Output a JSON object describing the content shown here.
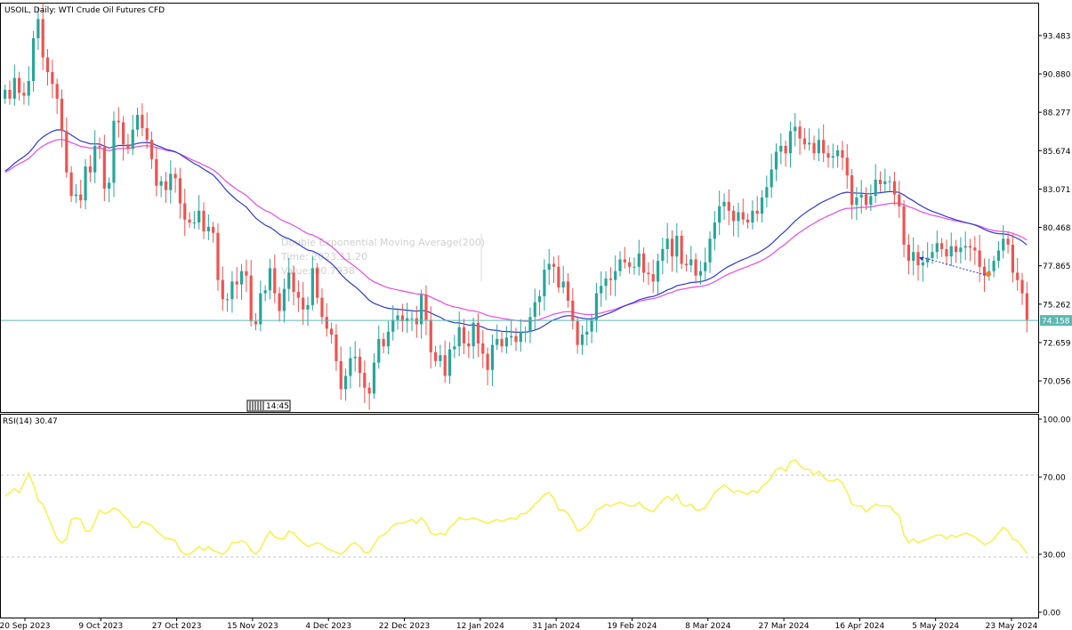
{
  "header": {
    "symbol_title": "USOIL, Daily:  WTI Crude Oil Futures CFD"
  },
  "tooltip": {
    "line1": "Double Exponential Moving Average(200)",
    "line2": "Time: 2023.11.20",
    "line3": "Value: 80.7938"
  },
  "time_marker": "14:45",
  "colors": {
    "bull": "#26a69a",
    "bear": "#ef5350",
    "ma_blue": "#2b3bd4",
    "ma_magenta": "#e64ce0",
    "rsi": "#f7f13a",
    "price_line": "#5bb8b0",
    "frame": "#000000"
  },
  "chart_data": [
    {
      "type": "candlestick",
      "title": "USOIL, Daily:  WTI Crude Oil Futures CFD",
      "y_ticks": [
        93.483,
        90.88,
        88.277,
        85.674,
        83.071,
        80.468,
        77.865,
        75.262,
        72.659,
        70.056
      ],
      "ylim": [
        67.95,
        95.65
      ],
      "current_price": "74.158",
      "x_ticks": [
        "20 Sep 2023",
        "9 Oct 2023",
        "27 Oct 2023",
        "15 Nov 2023",
        "4 Dec 2023",
        "22 Dec 2023",
        "12 Jan 2024",
        "31 Jan 2024",
        "19 Feb 2024",
        "8 Mar 2024",
        "27 Mar 2024",
        "16 Apr 2024",
        "5 May 2024",
        "23 May 2024"
      ],
      "close": [
        89.8,
        89.2,
        90.6,
        89.6,
        89.4,
        90.4,
        93.3,
        94.6,
        92.0,
        91.0,
        90.2,
        89.2,
        87.0,
        84.2,
        82.6,
        82.7,
        82.3,
        84.6,
        84.2,
        86.0,
        85.9,
        83.1,
        83.5,
        87.7,
        87.6,
        86.1,
        85.8,
        87.1,
        88.1,
        87.2,
        86.4,
        85.1,
        83.3,
        83.6,
        83.0,
        84.1,
        83.8,
        82.1,
        81.0,
        80.8,
        80.8,
        81.6,
        80.2,
        80.5,
        80.1,
        76.9,
        75.6,
        75.6,
        76.8,
        76.6,
        77.5,
        77.2,
        74.1,
        73.9,
        76.0,
        76.2,
        77.7,
        76.0,
        74.8,
        76.3,
        77.4,
        76.1,
        75.7,
        74.9,
        75.2,
        77.7,
        75.7,
        74.4,
        73.6,
        73.2,
        71.4,
        69.5,
        70.4,
        71.6,
        71.7,
        70.6,
        69.6,
        69.2,
        71.3,
        72.9,
        72.4,
        73.4,
        74.2,
        74.5,
        74.1,
        74.3,
        74.3,
        73.9,
        75.9,
        74.2,
        72.0,
        71.4,
        71.8,
        70.4,
        72.2,
        72.4,
        73.7,
        72.6,
        72.4,
        74.0,
        72.6,
        71.9,
        70.8,
        72.5,
        72.9,
        72.4,
        73.0,
        73.1,
        72.7,
        73.4,
        73.4,
        74.4,
        75.4,
        75.8,
        77.6,
        78.0,
        77.8,
        76.4,
        76.8,
        75.5,
        74.1,
        72.5,
        73.2,
        73.4,
        74.2,
        76.0,
        76.5,
        77.0,
        76.9,
        77.5,
        78.3,
        78.1,
        77.8,
        77.8,
        78.7,
        77.4,
        77.3,
        76.8,
        78.2,
        79.0,
        79.7,
        78.5,
        79.9,
        78.0,
        77.9,
        78.3,
        77.2,
        77.5,
        78.1,
        79.7,
        80.8,
        81.9,
        82.2,
        81.6,
        80.9,
        81.5,
        81.0,
        80.8,
        81.6,
        81.4,
        82.5,
        83.2,
        84.4,
        85.6,
        86.0,
        85.5,
        87.0,
        87.3,
        86.5,
        86.1,
        86.2,
        85.5,
        86.4,
        85.5,
        85.2,
        85.3,
        85.7,
        85.2,
        84.0,
        82.0,
        82.5,
        82.7,
        82.0,
        82.6,
        83.7,
        83.4,
        83.6,
        83.6,
        82.7,
        81.9,
        79.3,
        78.2,
        78.8,
        77.9,
        78.1,
        78.4,
        78.8,
        79.4,
        79.0,
        78.5,
        79.2,
        78.8,
        79.1,
        79.2,
        79.1,
        78.9,
        77.8,
        77.2,
        77.5,
        78.2,
        78.9,
        79.7,
        79.3,
        77.4,
        76.9,
        76.0,
        74.2
      ],
      "rsi_ticks": [
        100.0,
        70.0,
        30.0,
        0.0
      ],
      "rsi_title": "RSI(14) 30.47",
      "rsi_ylim": [
        0,
        100
      ],
      "rsi": [
        60,
        62,
        64,
        62,
        67,
        72,
        66,
        58,
        56,
        50,
        44,
        38,
        36,
        38,
        48,
        49,
        48,
        42,
        42,
        47,
        53,
        51,
        52,
        54,
        53,
        50,
        48,
        44,
        44,
        47,
        46,
        45,
        42,
        40,
        38,
        38,
        37,
        32,
        30,
        30,
        32,
        34,
        32,
        34,
        32,
        31,
        30,
        32,
        36,
        36,
        37,
        36,
        32,
        30,
        33,
        38,
        42,
        39,
        38,
        38,
        42,
        41,
        38,
        36,
        34,
        35,
        36,
        35,
        33,
        32,
        31,
        30,
        32,
        35,
        36,
        34,
        31,
        31,
        35,
        39,
        40,
        42,
        45,
        46,
        46,
        47,
        48,
        46,
        49,
        46,
        41,
        40,
        41,
        40,
        44,
        46,
        49,
        48,
        48,
        49,
        48,
        47,
        46,
        47,
        48,
        47,
        48,
        49,
        48,
        51,
        51,
        53,
        56,
        58,
        61,
        62,
        59,
        53,
        53,
        51,
        47,
        42,
        43,
        45,
        48,
        53,
        54,
        56,
        55,
        56,
        57,
        56,
        55,
        55,
        57,
        54,
        53,
        52,
        55,
        58,
        60,
        58,
        61,
        56,
        55,
        56,
        53,
        53,
        54,
        58,
        62,
        64,
        66,
        64,
        62,
        63,
        62,
        61,
        63,
        62,
        65,
        67,
        70,
        74,
        75,
        73,
        78,
        79,
        76,
        74,
        74,
        71,
        73,
        70,
        68,
        68,
        69,
        67,
        62,
        56,
        55,
        55,
        52,
        54,
        56,
        55,
        55,
        55,
        52,
        50,
        40,
        36,
        38,
        36,
        37,
        38,
        39,
        40,
        40,
        38,
        40,
        39,
        40,
        41,
        40,
        39,
        37,
        35,
        36,
        38,
        41,
        44,
        42,
        38,
        37,
        34,
        30.5
      ]
    }
  ]
}
